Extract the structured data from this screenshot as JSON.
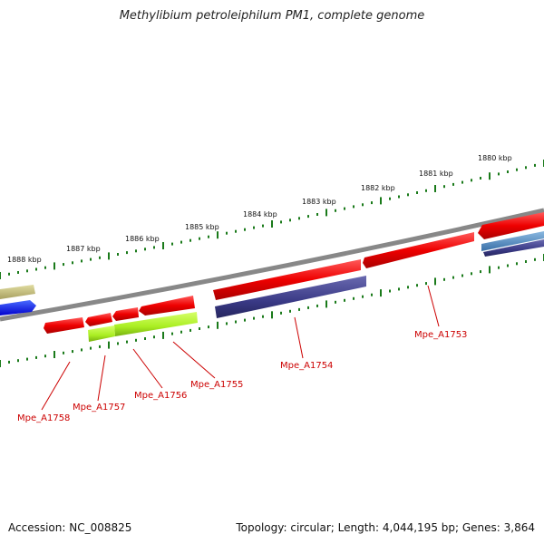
{
  "title": "Methylibium petroleiphilum PM1, complete genome",
  "accession": "Accession: NC_008825",
  "summary": "Topology: circular; Length: 4,044,195 bp; Genes: 3,864",
  "kbp_labels": [
    "1880 kbp",
    "1881 kbp",
    "1882 kbp",
    "1883 kbp",
    "1884 kbp",
    "1885 kbp",
    "1886 kbp",
    "1887 kbp",
    "1888 kbp"
  ],
  "gene_labels": [
    "Mpe_A1753",
    "Mpe_A1754",
    "Mpe_A1755",
    "Mpe_A1756",
    "Mpe_A1757",
    "Mpe_A1758"
  ],
  "colors": {
    "forward_cds": "#ee0000",
    "reverse_cds": "#3a3a86",
    "rna": "#aaee22",
    "backbone": "#888888",
    "ticks": "#1a7a1a",
    "gene_label": "#cc0000"
  }
}
